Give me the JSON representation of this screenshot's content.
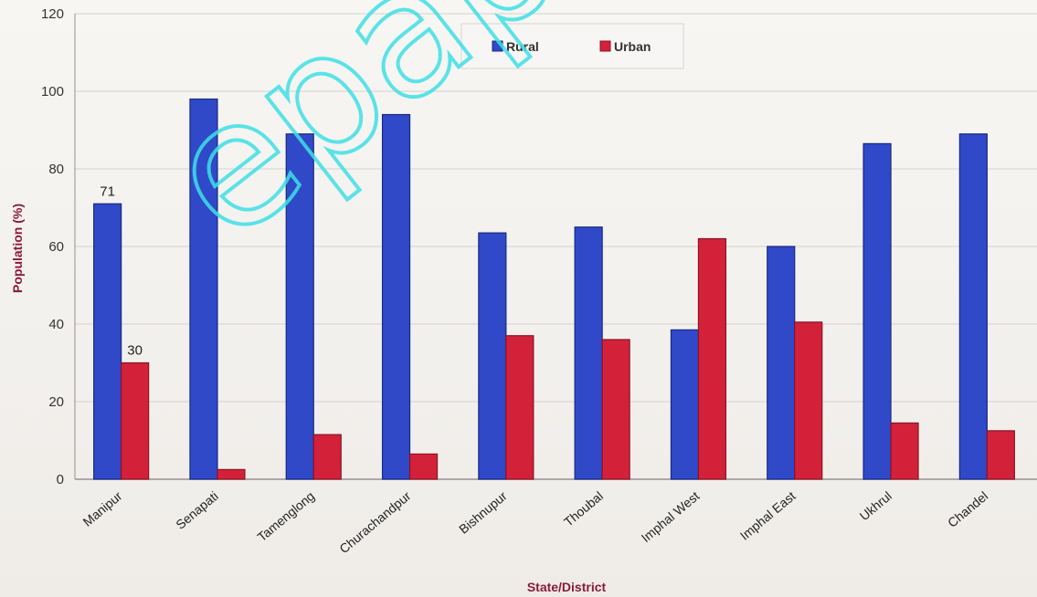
{
  "chart_data": {
    "type": "bar",
    "categories": [
      "Manipur",
      "Senapati",
      "Tamenglong",
      "Churachandpur",
      "Bishnupur",
      "Thoubal",
      "Imphal West",
      "Imphal  East",
      "Ukhrul",
      "Chandel"
    ],
    "series": [
      {
        "name": "Rural",
        "values": [
          71,
          98,
          89,
          94,
          63.5,
          65,
          38.5,
          60,
          86.5,
          89
        ],
        "color": "#2f49c9",
        "edge": "#1a2a80"
      },
      {
        "name": "Urban",
        "values": [
          30,
          2.5,
          11.5,
          6.5,
          37,
          36,
          62,
          40.5,
          14.5,
          12.5
        ],
        "color": "#d3213a",
        "edge": "#8a1424"
      }
    ],
    "data_labels": [
      {
        "series": "Rural",
        "category": "Manipur",
        "text": "71"
      },
      {
        "series": "Urban",
        "category": "Manipur",
        "text": "30"
      }
    ],
    "xlabel": "State/District",
    "ylabel": "Population (%)",
    "ylim": [
      0,
      120
    ],
    "yticks": [
      0,
      20,
      40,
      60,
      80,
      100,
      120
    ],
    "grid": "horizontal",
    "legend_position": "top-center",
    "axis_label_color": "#8b1a3a",
    "watermark": "epaper"
  }
}
